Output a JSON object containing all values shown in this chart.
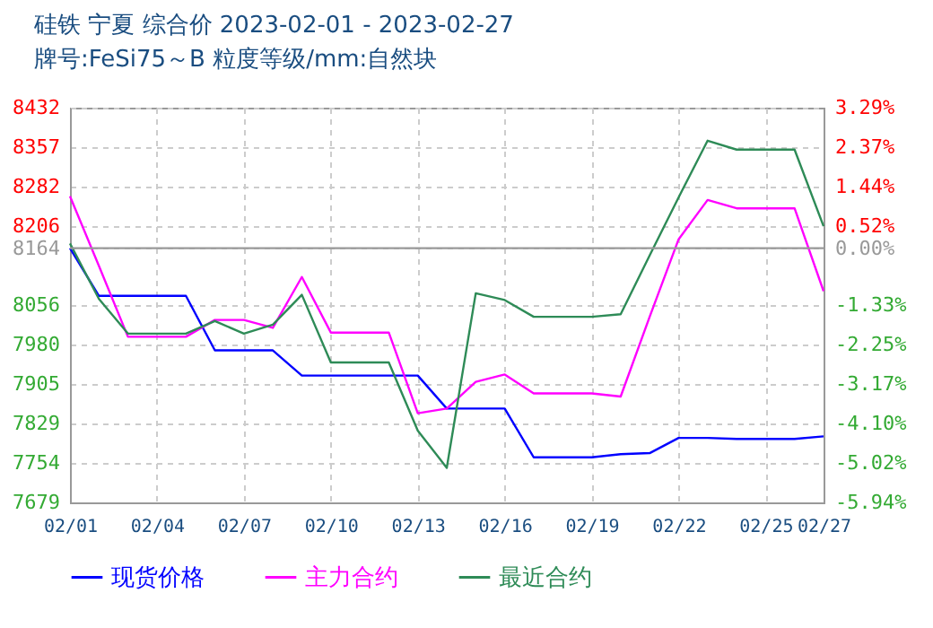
{
  "chart_data": {
    "type": "line",
    "title": "硅铁 宁夏 综合价 2023-02-01 - 2023-02-27",
    "subtitle": "牌号:FeSi75～B 粒度等级/mm:自然块",
    "x": [
      "2023-02-01",
      "2023-02-02",
      "2023-02-03",
      "2023-02-04",
      "2023-02-05",
      "2023-02-06",
      "2023-02-07",
      "2023-02-08",
      "2023-02-09",
      "2023-02-10",
      "2023-02-11",
      "2023-02-12",
      "2023-02-13",
      "2023-02-14",
      "2023-02-15",
      "2023-02-16",
      "2023-02-17",
      "2023-02-18",
      "2023-02-19",
      "2023-02-20",
      "2023-02-21",
      "2023-02-22",
      "2023-02-23",
      "2023-02-24",
      "2023-02-25",
      "2023-02-26",
      "2023-02-27"
    ],
    "series": [
      {
        "name": "现货价格",
        "color": "#0000ff",
        "values": [
          8164,
          8073,
          8073,
          8073,
          8073,
          7969,
          7969,
          7969,
          7921,
          7921,
          7921,
          7921,
          7921,
          7858,
          7858,
          7858,
          7765,
          7765,
          7765,
          7771,
          7773,
          7802,
          7802,
          7800,
          7800,
          7800,
          7805
        ]
      },
      {
        "name": "主力合约",
        "color": "#ff00ff",
        "values": [
          8263,
          8130,
          7995,
          7995,
          7995,
          8027,
          8027,
          8012,
          8109,
          8003,
          8003,
          8003,
          7849,
          7858,
          7909,
          7923,
          7887,
          7887,
          7887,
          7881,
          8033,
          8181,
          8256,
          8240,
          8240,
          8240,
          8082
        ]
      },
      {
        "name": "最近合约",
        "color": "#2e8b57",
        "values": [
          8173,
          8067,
          8001,
          8001,
          8001,
          8025,
          8001,
          8018,
          8075,
          7946,
          7946,
          7946,
          7816,
          7745,
          8078,
          8065,
          8033,
          8033,
          8033,
          8038,
          8150,
          8261,
          8369,
          8352,
          8352,
          8352,
          8206
        ]
      }
    ],
    "xlim": [
      "2023-02-01",
      "2023-02-27"
    ],
    "xticks": [
      {
        "value": "2023-02-01",
        "label": "02/01"
      },
      {
        "value": "2023-02-04",
        "label": "02/04"
      },
      {
        "value": "2023-02-07",
        "label": "02/07"
      },
      {
        "value": "2023-02-10",
        "label": "02/10"
      },
      {
        "value": "2023-02-13",
        "label": "02/13"
      },
      {
        "value": "2023-02-16",
        "label": "02/16"
      },
      {
        "value": "2023-02-19",
        "label": "02/19"
      },
      {
        "value": "2023-02-22",
        "label": "02/22"
      },
      {
        "value": "2023-02-25",
        "label": "02/25"
      },
      {
        "value": "2023-02-27",
        "label": "02/27"
      }
    ],
    "ylim": [
      7679,
      8432
    ],
    "yticks": [
      7679,
      7754,
      7829,
      7905,
      7980,
      8056,
      8164,
      8206,
      8282,
      8357,
      8432
    ],
    "y2lim": [
      -5.94,
      3.29
    ],
    "y2ticks": [
      {
        "value": -5.94,
        "label": "-5.94%"
      },
      {
        "value": -5.02,
        "label": "-5.02%"
      },
      {
        "value": -4.1,
        "label": "-4.10%"
      },
      {
        "value": -3.17,
        "label": "-3.17%"
      },
      {
        "value": -2.25,
        "label": "-2.25%"
      },
      {
        "value": -1.33,
        "label": "-1.33%"
      },
      {
        "value": 0,
        "label": "0.00%"
      },
      {
        "value": 0.52,
        "label": "0.52%"
      },
      {
        "value": 1.44,
        "label": "1.44%"
      },
      {
        "value": 2.37,
        "label": "2.37%"
      },
      {
        "value": 3.29,
        "label": "3.29%"
      }
    ],
    "ref_lines": [
      {
        "axis": "y",
        "value": 8164,
        "color": "#999999"
      }
    ],
    "grid": true,
    "legend": "bottom",
    "line_style": "solid",
    "marker": "none"
  }
}
